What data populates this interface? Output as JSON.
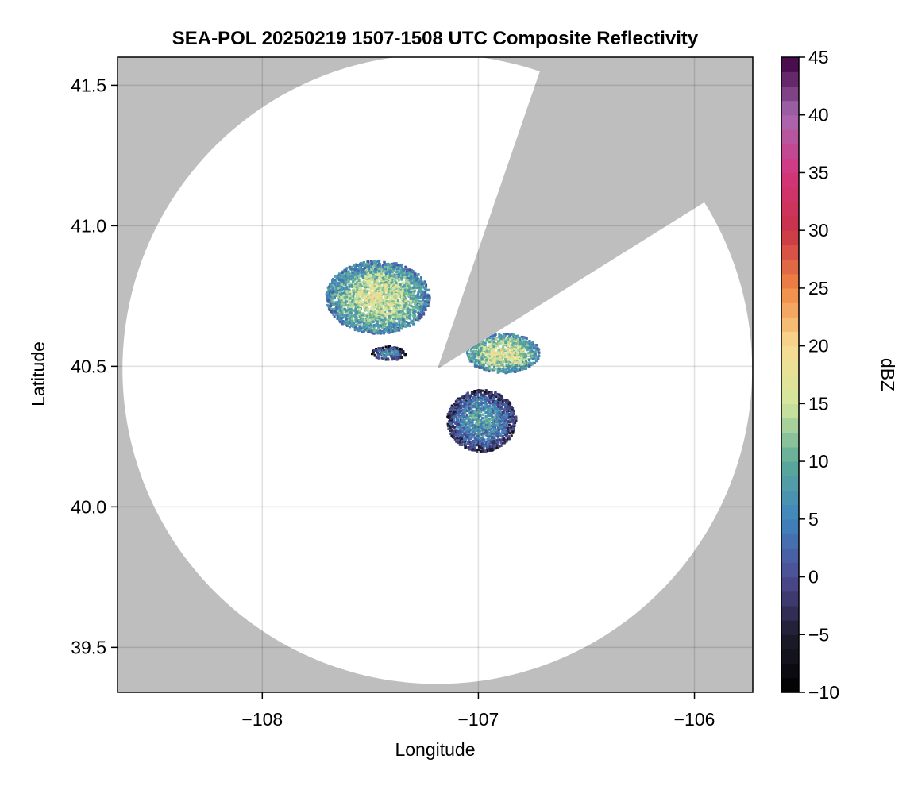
{
  "chart_data": {
    "type": "heatmap",
    "title": "SEA-POL 20250219 1507-1508 UTC Composite Reflectivity",
    "xlabel": "Longitude",
    "ylabel": "Latitude",
    "xlim": [
      -108.67,
      -105.73
    ],
    "ylim": [
      39.34,
      41.6
    ],
    "x_ticks": [
      -108,
      -107,
      -106
    ],
    "x_tick_labels": [
      "−108",
      "−107",
      "−106"
    ],
    "y_ticks": [
      39.5,
      40.0,
      40.5,
      41.0,
      41.5
    ],
    "y_tick_labels": [
      "39.5",
      "40.0",
      "40.5",
      "41.0",
      "41.5"
    ],
    "grid": true,
    "background_color": "#bebebe",
    "coverage_color": "#ffffff",
    "radar": {
      "center_lon": -107.19,
      "center_lat": 40.49,
      "range_lat_deg": 1.12,
      "blocked_sectors_deg_from_north": [
        [
          19,
          58
        ]
      ]
    },
    "colorbar": {
      "label": "dBZ",
      "min": -10,
      "max": 45,
      "step": 1.25,
      "ticks": [
        -10,
        -5,
        0,
        5,
        10,
        15,
        20,
        25,
        30,
        35,
        40,
        45
      ],
      "tick_labels": [
        "−10",
        "−5",
        "0",
        "5",
        "10",
        "15",
        "20",
        "25",
        "30",
        "35",
        "40",
        "45"
      ],
      "stops": [
        {
          "v": -10,
          "c": "#000000"
        },
        {
          "v": -5,
          "c": "#1e1c2e"
        },
        {
          "v": 0,
          "c": "#4e4c94"
        },
        {
          "v": 5,
          "c": "#3f84be"
        },
        {
          "v": 10,
          "c": "#5caa98"
        },
        {
          "v": 15,
          "c": "#d3e89c"
        },
        {
          "v": 20,
          "c": "#f8db93"
        },
        {
          "v": 25,
          "c": "#f08844"
        },
        {
          "v": 30,
          "c": "#c93346"
        },
        {
          "v": 35,
          "c": "#d2357d"
        },
        {
          "v": 40,
          "c": "#a66ab2"
        },
        {
          "v": 45,
          "c": "#3d0040"
        }
      ]
    },
    "echoes": [
      {
        "name": "northwest cluster",
        "lon": -107.47,
        "lat": 40.75,
        "dlon": 0.24,
        "dlat": 0.13,
        "dbz_mean": 16
      },
      {
        "name": "northeast cluster",
        "lon": -106.89,
        "lat": 40.55,
        "dlon": 0.17,
        "dlat": 0.07,
        "dbz_mean": 17
      },
      {
        "name": "west band",
        "lon": -107.42,
        "lat": 40.55,
        "dlon": 0.08,
        "dlat": 0.025,
        "dbz_mean": 6
      },
      {
        "name": "southeast band",
        "lon": -106.99,
        "lat": 40.31,
        "dlon": 0.16,
        "dlat": 0.11,
        "dbz_mean": 8
      }
    ]
  }
}
